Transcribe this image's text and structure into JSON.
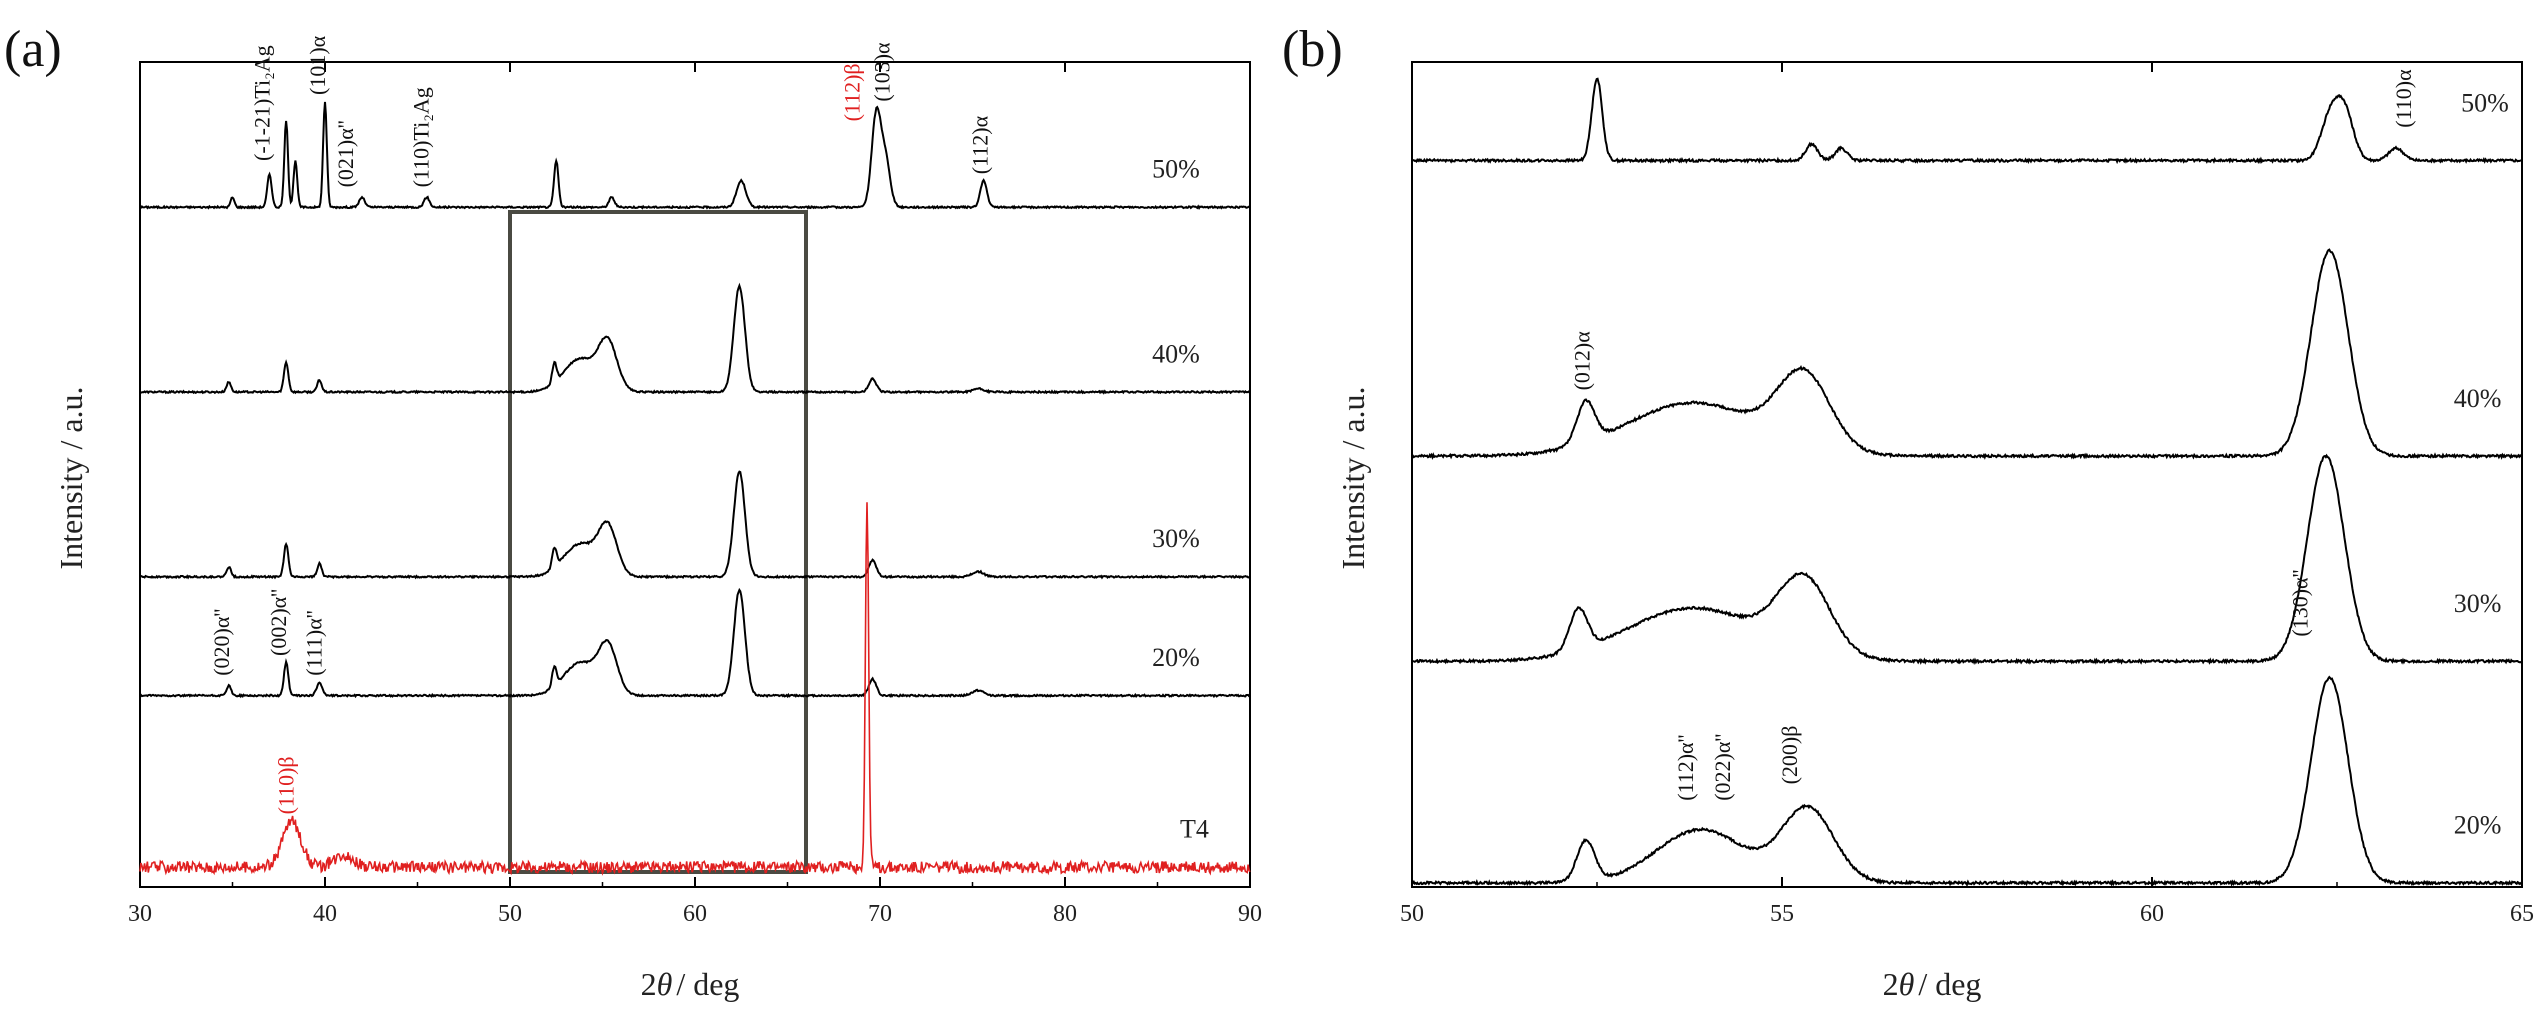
{
  "figure": {
    "left_panel_label": "(a)",
    "right_panel_label": "(b)",
    "ylabel": "Intensity / a.u.",
    "xlabel_prefix": "2",
    "xlabel_theta": "θ",
    "xlabel_suffix": "/ deg"
  },
  "chart_data": [
    {
      "type": "line",
      "panel": "(a)",
      "title": "",
      "xlabel": "2θ / deg",
      "ylabel": "Intensity / a.u.",
      "xlim": [
        30,
        90
      ],
      "xticks": [
        "30",
        "40",
        "50",
        "60",
        "70",
        "80",
        "90"
      ],
      "grid": false,
      "legend": "none",
      "inset_box_x_range": [
        50,
        66
      ],
      "series": [
        {
          "name": "50%",
          "color": "#000000",
          "baseline": 1.0,
          "label_x": 86,
          "peaks": [
            [
              35.0,
              0.015,
              0.1
            ],
            [
              37.0,
              0.05,
              0.12
            ],
            [
              37.9,
              0.13,
              0.1
            ],
            [
              38.4,
              0.07,
              0.1
            ],
            [
              40.0,
              0.16,
              0.1
            ],
            [
              42.0,
              0.015,
              0.15
            ],
            [
              45.5,
              0.015,
              0.15
            ],
            [
              52.5,
              0.07,
              0.12
            ],
            [
              55.5,
              0.015,
              0.15
            ],
            [
              62.5,
              0.04,
              0.25
            ],
            [
              69.8,
              0.14,
              0.25
            ],
            [
              70.3,
              0.07,
              0.25
            ],
            [
              75.6,
              0.04,
              0.18
            ]
          ]
        },
        {
          "name": "40%",
          "color": "#000000",
          "baseline": 0.72,
          "label_x": 86,
          "peaks": [
            [
              34.8,
              0.015,
              0.12
            ],
            [
              37.9,
              0.045,
              0.12
            ],
            [
              39.7,
              0.018,
              0.12
            ],
            [
              52.4,
              0.03,
              0.12
            ],
            [
              53.8,
              0.05,
              0.9
            ],
            [
              55.3,
              0.07,
              0.5
            ],
            [
              62.4,
              0.16,
              0.3
            ],
            [
              69.6,
              0.02,
              0.2
            ],
            [
              75.3,
              0.005,
              0.3
            ]
          ]
        },
        {
          "name": "30%",
          "color": "#000000",
          "baseline": 0.44,
          "label_x": 86,
          "peaks": [
            [
              34.8,
              0.015,
              0.12
            ],
            [
              37.9,
              0.05,
              0.12
            ],
            [
              39.7,
              0.02,
              0.12
            ],
            [
              52.4,
              0.03,
              0.12
            ],
            [
              53.8,
              0.05,
              0.9
            ],
            [
              55.3,
              0.07,
              0.5
            ],
            [
              62.4,
              0.16,
              0.3
            ],
            [
              69.6,
              0.025,
              0.2
            ],
            [
              75.3,
              0.008,
              0.3
            ]
          ]
        },
        {
          "name": "20%",
          "color": "#000000",
          "baseline": 0.26,
          "label_x": 86,
          "peaks": [
            [
              34.8,
              0.015,
              0.12
            ],
            [
              37.9,
              0.05,
              0.12
            ],
            [
              39.7,
              0.02,
              0.15
            ],
            [
              52.4,
              0.03,
              0.12
            ],
            [
              53.8,
              0.05,
              0.9
            ],
            [
              55.3,
              0.07,
              0.5
            ],
            [
              62.4,
              0.16,
              0.3
            ],
            [
              69.6,
              0.025,
              0.2
            ],
            [
              75.3,
              0.008,
              0.3
            ]
          ]
        },
        {
          "name": "T4",
          "color": "#e02020",
          "baseline": 0.0,
          "label_x": 87,
          "peaks": [
            [
              38.2,
              0.07,
              0.5
            ],
            [
              41.0,
              0.02,
              0.5
            ],
            [
              69.3,
              0.55,
              0.09
            ]
          ]
        }
      ],
      "annotations": [
        {
          "text": "(-1-21)Ti₂Ag",
          "x": 37.0,
          "y": 1.07,
          "color": "#111111"
        },
        {
          "text": "(101)α",
          "x": 40.0,
          "y": 1.17,
          "color": "#111111"
        },
        {
          "text": "(021)α''",
          "x": 41.5,
          "y": 1.03,
          "color": "#111111"
        },
        {
          "text": "(110)Ti₂Ag",
          "x": 45.6,
          "y": 1.03,
          "color": "#111111"
        },
        {
          "text": "(112)β",
          "x": 68.9,
          "y": 1.13,
          "color": "#e02020"
        },
        {
          "text": "(103)α",
          "x": 70.5,
          "y": 1.16,
          "color": "#111111"
        },
        {
          "text": "(112)α",
          "x": 75.8,
          "y": 1.05,
          "color": "#111111"
        },
        {
          "text": "(020)α''",
          "x": 34.8,
          "y": 0.29,
          "color": "#111111"
        },
        {
          "text": "(002)α''",
          "x": 37.9,
          "y": 0.32,
          "color": "#111111"
        },
        {
          "text": "(111)α''",
          "x": 39.8,
          "y": 0.29,
          "color": "#111111"
        },
        {
          "text": "(110)β",
          "x": 38.3,
          "y": 0.08,
          "color": "#e02020"
        }
      ]
    },
    {
      "type": "line",
      "panel": "(b)",
      "title": "",
      "xlabel": "2θ / deg",
      "ylabel": "Intensity / a.u.",
      "xlim": [
        50,
        65
      ],
      "xticks": [
        "50",
        "55",
        "60",
        "65"
      ],
      "grid": false,
      "legend": "none",
      "series": [
        {
          "name": "50%",
          "color": "#000000",
          "baseline": 0.88,
          "label_x": 64.5,
          "peaks": [
            [
              52.5,
              0.1,
              0.07
            ],
            [
              55.4,
              0.02,
              0.08
            ],
            [
              55.8,
              0.015,
              0.08
            ],
            [
              62.4,
              0.05,
              0.12
            ],
            [
              62.6,
              0.06,
              0.12
            ],
            [
              63.3,
              0.015,
              0.1
            ]
          ]
        },
        {
          "name": "40%",
          "color": "#000000",
          "baseline": 0.52,
          "label_x": 64.4,
          "peaks": [
            [
              52.35,
              0.05,
              0.12
            ],
            [
              53.8,
              0.065,
              0.9
            ],
            [
              55.3,
              0.09,
              0.35
            ],
            [
              62.4,
              0.25,
              0.25
            ]
          ]
        },
        {
          "name": "30%",
          "color": "#000000",
          "baseline": 0.27,
          "label_x": 64.4,
          "peaks": [
            [
              52.25,
              0.05,
              0.12
            ],
            [
              53.8,
              0.065,
              0.9
            ],
            [
              55.3,
              0.09,
              0.35
            ],
            [
              62.35,
              0.25,
              0.25
            ]
          ]
        },
        {
          "name": "20%",
          "color": "#000000",
          "baseline": 0.0,
          "label_x": 64.4,
          "peaks": [
            [
              52.35,
              0.05,
              0.12
            ],
            [
              53.9,
              0.065,
              0.6
            ],
            [
              55.35,
              0.09,
              0.35
            ],
            [
              62.4,
              0.25,
              0.25
            ]
          ]
        }
      ],
      "annotations": [
        {
          "text": "(110)α",
          "x": 63.5,
          "y": 0.92,
          "color": "#111111"
        },
        {
          "text": "(012)α",
          "x": 52.4,
          "y": 0.6,
          "color": "#111111"
        },
        {
          "text": "(112)α''",
          "x": 53.8,
          "y": 0.1,
          "color": "#111111"
        },
        {
          "text": "(022)α''",
          "x": 54.3,
          "y": 0.1,
          "color": "#111111"
        },
        {
          "text": "(200)β",
          "x": 55.2,
          "y": 0.12,
          "color": "#111111"
        },
        {
          "text": "(130)α''",
          "x": 62.1,
          "y": 0.3,
          "color": "#111111"
        }
      ]
    }
  ]
}
